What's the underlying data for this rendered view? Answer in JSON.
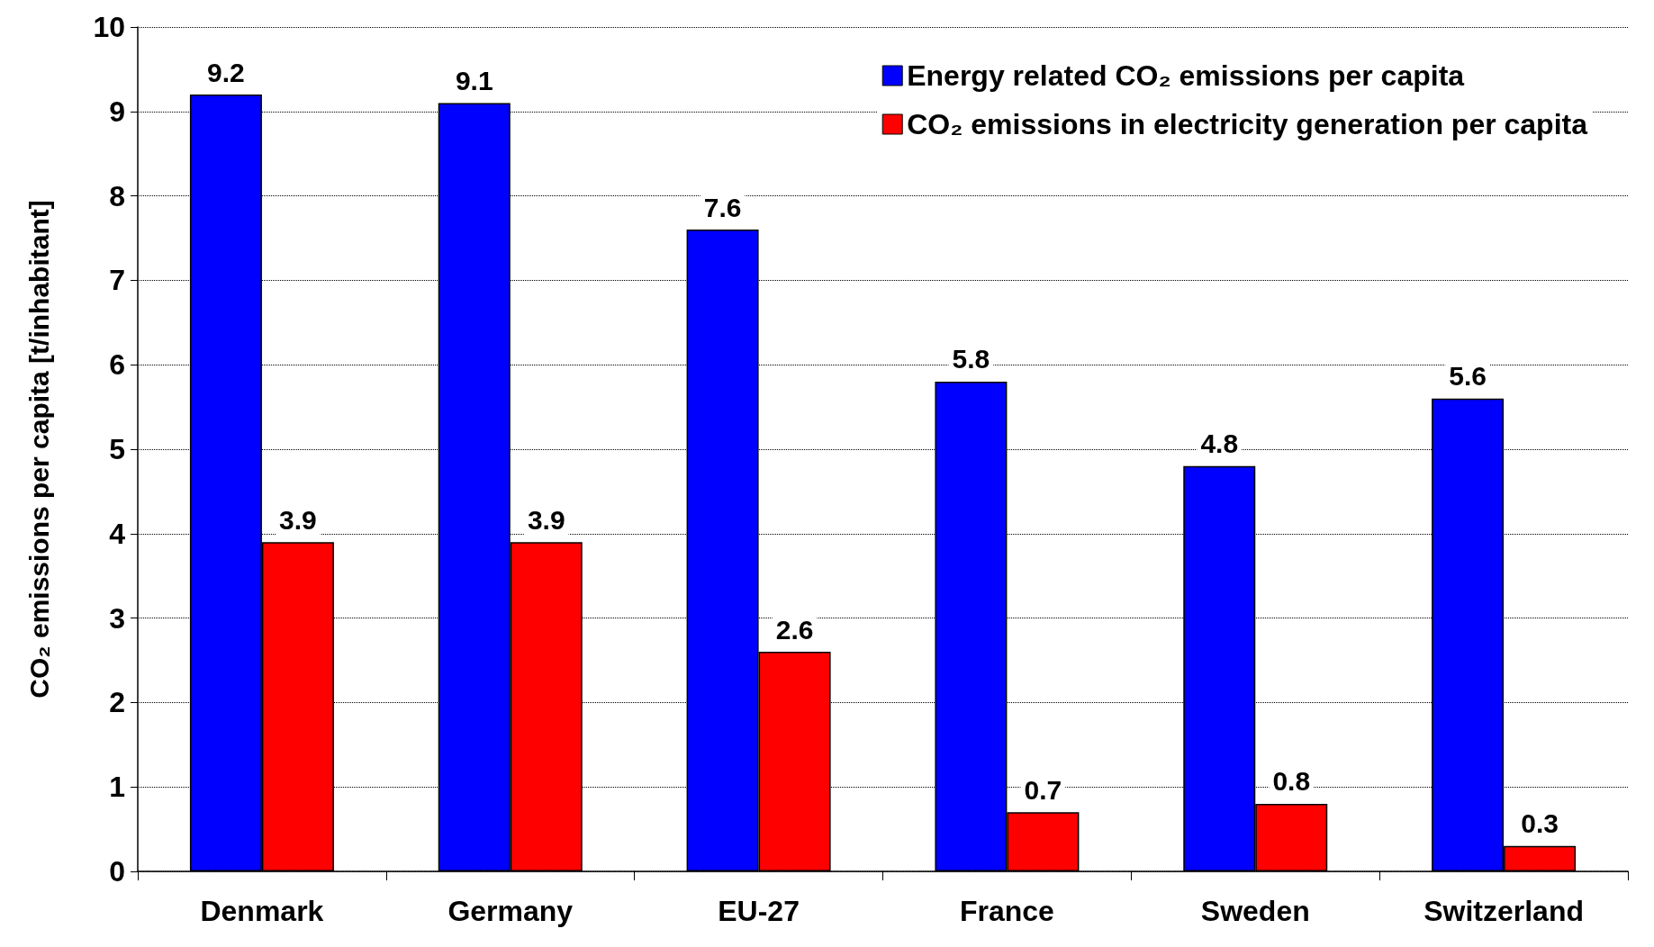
{
  "chart_data": {
    "type": "bar",
    "ylabel": "CO₂ emissions per capita [t/inhabitant]",
    "categories": [
      "Denmark",
      "Germany",
      "EU-27",
      "France",
      "Sweden",
      "Switzerland"
    ],
    "series": [
      {
        "name": "Energy related CO₂ emissions per capita",
        "color": "#0000ff",
        "values": [
          9.2,
          9.1,
          7.6,
          5.8,
          4.8,
          5.6
        ]
      },
      {
        "name": "CO₂ emissions in electricity generation per capita",
        "color": "#ff0000",
        "values": [
          3.9,
          3.9,
          2.6,
          0.7,
          0.8,
          0.3
        ]
      }
    ],
    "ylim": [
      0,
      10
    ],
    "yticks": [
      0,
      1,
      2,
      3,
      4,
      5,
      6,
      7,
      8,
      9,
      10
    ],
    "grid": "y",
    "legend": "top right",
    "data_labels": true
  }
}
